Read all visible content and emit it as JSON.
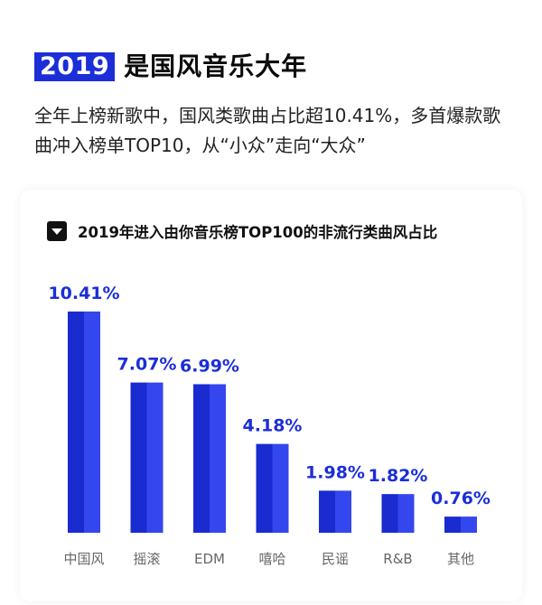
{
  "header": {
    "year_badge": "2019",
    "headline": "是国风音乐大年",
    "description": "全年上榜新歌中，国风类歌曲占比超10.41%，多首爆款歌曲冲入榜单TOP10，从“小众”走向“大众”"
  },
  "colors": {
    "accent": "#1c2ed8",
    "bar_dark": "#1a2bcf",
    "bar_light": "#3446ee",
    "category_text": "#666666"
  },
  "chart_data": {
    "type": "bar",
    "title": "2019年进入由你音乐榜TOP100的非流行类曲风占比",
    "categories": [
      "中国风",
      "摇滚",
      "EDM",
      "嘻哈",
      "民谣",
      "R&B",
      "其他"
    ],
    "values": [
      10.41,
      7.07,
      6.99,
      4.18,
      1.98,
      1.82,
      0.76
    ],
    "value_labels": [
      "10.41%",
      "7.07%",
      "6.99%",
      "4.18%",
      "1.98%",
      "1.82%",
      "0.76%"
    ],
    "ylim": [
      0,
      10.41
    ],
    "grid": false,
    "xlabel": "",
    "ylabel": ""
  }
}
